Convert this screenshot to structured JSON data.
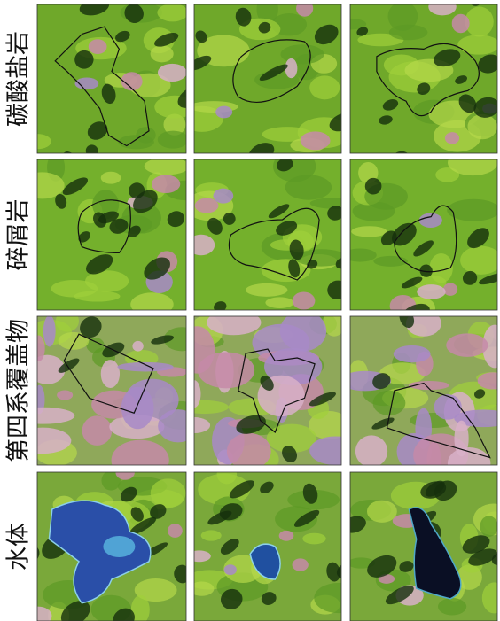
{
  "row_labels": [
    "碳酸盐岩",
    "碎屑岩",
    "第四系覆盖物",
    "水体"
  ]
}
